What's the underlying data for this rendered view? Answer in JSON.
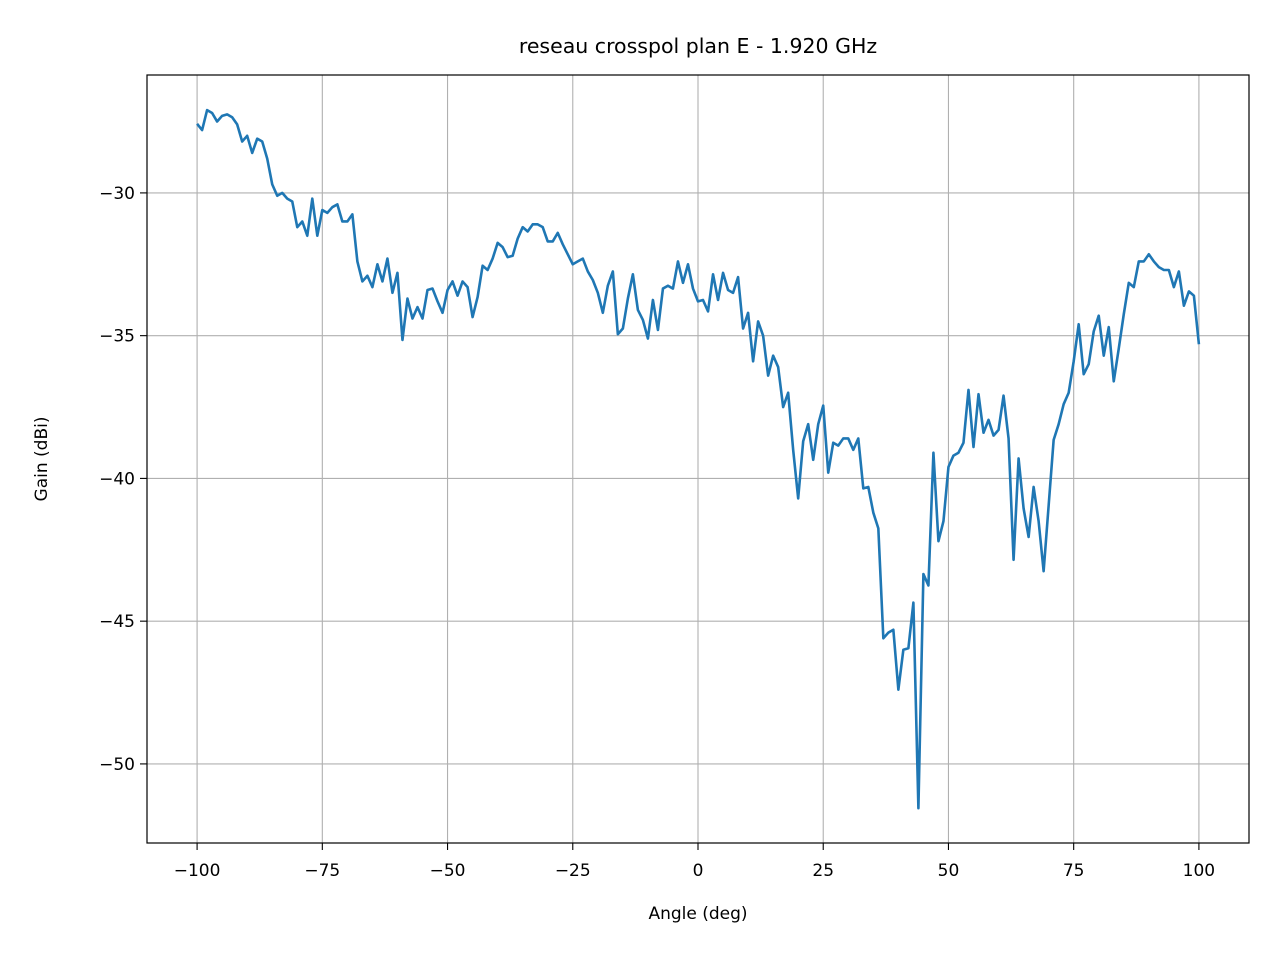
{
  "chart_data": {
    "type": "line",
    "title": "reseau crosspol plan E - 1.920 GHz",
    "x_label": "Angle (deg)",
    "y_label": "Gain (dBi)",
    "xlim": [
      -110,
      110
    ],
    "ylim": [
      -52.77,
      -25.87
    ],
    "xticks": [
      {
        "value": -100,
        "label": "−100"
      },
      {
        "value": -75,
        "label": "−75"
      },
      {
        "value": -50,
        "label": "−50"
      },
      {
        "value": -25,
        "label": "−25"
      },
      0,
      25,
      50,
      75,
      100
    ],
    "yticks": [
      {
        "value": -50,
        "label": "−50"
      },
      {
        "value": -45,
        "label": "−45"
      },
      {
        "value": -40,
        "label": "−40"
      },
      {
        "value": -35,
        "label": "−35"
      },
      {
        "value": -30,
        "label": "−30"
      }
    ],
    "grid": true,
    "x": [
      -100,
      -99,
      -98,
      -97,
      -96,
      -95,
      -94,
      -93,
      -92,
      -91,
      -90,
      -89,
      -88,
      -87,
      -86,
      -85,
      -84,
      -83,
      -82,
      -81,
      -80,
      -79,
      -78,
      -77,
      -76,
      -75,
      -74,
      -73,
      -72,
      -71,
      -70,
      -69,
      -68,
      -67,
      -66,
      -65,
      -64,
      -63,
      -62,
      -61,
      -60,
      -59,
      -58,
      -57,
      -56,
      -55,
      -54,
      -53,
      -52,
      -51,
      -50,
      -49,
      -48,
      -47,
      -46,
      -45,
      -44,
      -43,
      -42,
      -41,
      -40,
      -39,
      -38,
      -37,
      -36,
      -35,
      -34,
      -33,
      -32,
      -31,
      -30,
      -29,
      -28,
      -27,
      -26,
      -25,
      -24,
      -23,
      -22,
      -21,
      -20,
      -19,
      -18,
      -17,
      -16,
      -15,
      -14,
      -13,
      -12,
      -11,
      -10,
      -9,
      -8,
      -7,
      -6,
      -5,
      -4,
      -3,
      -2,
      -1,
      0,
      1,
      2,
      3,
      4,
      5,
      6,
      7,
      8,
      9,
      10,
      11,
      12,
      13,
      14,
      15,
      16,
      17,
      18,
      19,
      20,
      21,
      22,
      23,
      24,
      25,
      26,
      27,
      28,
      29,
      30,
      31,
      32,
      33,
      34,
      35,
      36,
      37,
      38,
      39,
      40,
      41,
      42,
      43,
      44,
      45,
      46,
      47,
      48,
      49,
      50,
      51,
      52,
      53,
      54,
      55,
      56,
      57,
      58,
      59,
      60,
      61,
      62,
      63,
      64,
      65,
      66,
      67,
      68,
      69,
      70,
      71,
      72,
      73,
      74,
      75,
      76,
      77,
      78,
      79,
      80,
      81,
      82,
      83,
      84,
      85,
      86,
      87,
      88,
      89,
      90,
      91,
      92,
      93,
      94,
      95,
      96,
      97,
      98,
      99,
      100
    ],
    "series": [
      {
        "color": "#1f77b4",
        "values": [
          -27.58,
          -27.8,
          -27.1,
          -27.2,
          -27.5,
          -27.3,
          -27.25,
          -27.35,
          -27.6,
          -28.2,
          -28.0,
          -28.6,
          -28.1,
          -28.2,
          -28.8,
          -29.7,
          -30.1,
          -30.0,
          -30.2,
          -30.3,
          -31.2,
          -31.0,
          -31.5,
          -30.2,
          -31.5,
          -30.6,
          -30.7,
          -30.5,
          -30.4,
          -31.0,
          -31.0,
          -30.75,
          -32.4,
          -33.1,
          -32.9,
          -33.3,
          -32.5,
          -33.1,
          -32.3,
          -33.5,
          -32.8,
          -35.15,
          -33.7,
          -34.4,
          -34.0,
          -34.4,
          -33.4,
          -33.35,
          -33.8,
          -34.2,
          -33.4,
          -33.1,
          -33.6,
          -33.1,
          -33.3,
          -34.35,
          -33.65,
          -32.55,
          -32.7,
          -32.3,
          -31.75,
          -31.9,
          -32.25,
          -32.2,
          -31.6,
          -31.2,
          -31.35,
          -31.1,
          -31.1,
          -31.2,
          -31.7,
          -31.7,
          -31.4,
          -31.8,
          -32.15,
          -32.5,
          -32.4,
          -32.3,
          -32.75,
          -33.05,
          -33.5,
          -34.2,
          -33.25,
          -32.75,
          -34.95,
          -34.75,
          -33.7,
          -32.85,
          -34.1,
          -34.45,
          -35.1,
          -33.75,
          -34.8,
          -33.35,
          -33.25,
          -33.35,
          -32.4,
          -33.15,
          -32.5,
          -33.35,
          -33.8,
          -33.75,
          -34.15,
          -32.85,
          -33.75,
          -32.8,
          -33.4,
          -33.5,
          -32.95,
          -34.75,
          -34.2,
          -35.9,
          -34.5,
          -35.0,
          -36.4,
          -35.7,
          -36.1,
          -37.5,
          -37.0,
          -39.0,
          -40.7,
          -38.7,
          -38.1,
          -39.35,
          -38.1,
          -37.45,
          -39.8,
          -38.75,
          -38.85,
          -38.6,
          -38.6,
          -39.0,
          -38.6,
          -40.35,
          -40.3,
          -41.2,
          -41.75,
          -45.6,
          -45.4,
          -45.3,
          -47.4,
          -46.0,
          -45.95,
          -44.35,
          -51.55,
          -43.35,
          -43.75,
          -39.1,
          -42.2,
          -41.5,
          -39.6,
          -39.2,
          -39.1,
          -38.75,
          -36.9,
          -38.9,
          -37.05,
          -38.4,
          -37.95,
          -38.5,
          -38.3,
          -37.1,
          -38.6,
          -42.85,
          -39.3,
          -41.05,
          -42.05,
          -40.3,
          -41.5,
          -43.25,
          -40.95,
          -38.65,
          -38.1,
          -37.4,
          -37.0,
          -35.9,
          -34.6,
          -36.35,
          -36.0,
          -34.85,
          -34.3,
          -35.7,
          -34.7,
          -36.6,
          -35.45,
          -34.25,
          -33.15,
          -33.3,
          -32.4,
          -32.4,
          -32.15,
          -32.4,
          -32.6,
          -32.7,
          -32.7,
          -33.3,
          -32.75,
          -33.95,
          -33.45,
          -33.6,
          -35.3
        ]
      }
    ]
  }
}
